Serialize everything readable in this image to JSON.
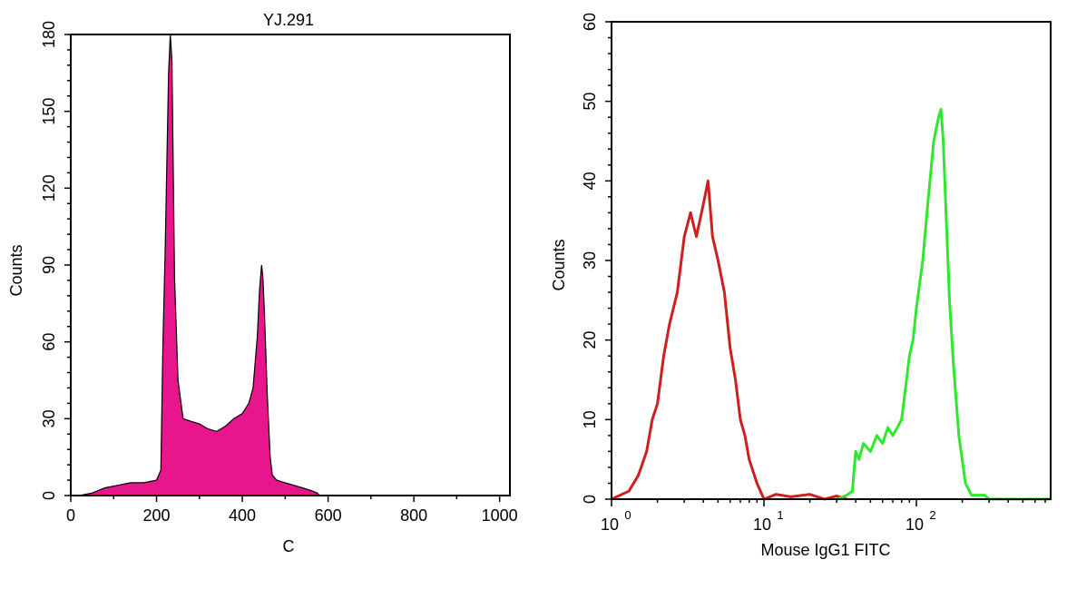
{
  "chart_data": [
    {
      "type": "area",
      "title": "YJ.291",
      "xlabel": "C",
      "ylabel": "Counts",
      "xlim": [
        0,
        1024
      ],
      "ylim": [
        0,
        180
      ],
      "xticks": [
        "0",
        "200",
        "400",
        "600",
        "800",
        "1000"
      ],
      "yticks": [
        "0",
        "30",
        "60",
        "90",
        "120",
        "150",
        "180"
      ],
      "grid": false,
      "series": [
        {
          "color": "#e8168c",
          "x": [
            20,
            50,
            80,
            110,
            140,
            170,
            200,
            210,
            215,
            220,
            228,
            232,
            236,
            242,
            250,
            262,
            280,
            300,
            320,
            340,
            360,
            380,
            400,
            415,
            425,
            435,
            440,
            445,
            448,
            452,
            458,
            465,
            470,
            480,
            500,
            520,
            540,
            560,
            575,
            580,
            600,
            700,
            800,
            900,
            1000
          ],
          "values": [
            0,
            1,
            3,
            4,
            5,
            5,
            6,
            10,
            60,
            95,
            165,
            185,
            170,
            85,
            45,
            30,
            29,
            28,
            26,
            25,
            27,
            30,
            32,
            36,
            42,
            62,
            80,
            90,
            85,
            70,
            40,
            15,
            8,
            6,
            5,
            4,
            3,
            2,
            1,
            0,
            0,
            0,
            0,
            0,
            0
          ]
        }
      ]
    },
    {
      "type": "line",
      "title": "",
      "xlabel": "Mouse IgG1 FITC",
      "ylabel": "Counts",
      "xscale": "log",
      "xlim": [
        1,
        1000
      ],
      "ylim": [
        0,
        60
      ],
      "xticks": [
        "10",
        "10",
        "10"
      ],
      "xtick_exponents": [
        "0",
        "1",
        "2"
      ],
      "yticks": [
        "0",
        "10",
        "20",
        "30",
        "40",
        "50",
        "60"
      ],
      "grid": false,
      "series": [
        {
          "color": "#cc1f1f",
          "x": [
            1.0,
            1.3,
            1.5,
            1.7,
            1.85,
            2.0,
            2.2,
            2.4,
            2.7,
            3.0,
            3.3,
            3.6,
            4.0,
            4.3,
            4.6,
            5.0,
            5.5,
            6.0,
            6.5,
            7.0,
            7.5,
            8.0,
            9.0,
            10.0,
            12.0,
            15.0,
            20.0,
            25.0,
            30.0,
            35.0
          ],
          "values": [
            0,
            1,
            3,
            6,
            10,
            12,
            18,
            22,
            26,
            33,
            36,
            33,
            37,
            40,
            33,
            30,
            26,
            19,
            15,
            10,
            8,
            5,
            2,
            0,
            0.6,
            0.3,
            0.6,
            0,
            0.4,
            0
          ]
        },
        {
          "color": "#2ee82e",
          "x": [
            30,
            35,
            38,
            40,
            42,
            45,
            50,
            55,
            60,
            65,
            70,
            75,
            80,
            85,
            90,
            95,
            100,
            110,
            120,
            130,
            140,
            145,
            150,
            155,
            165,
            175,
            190,
            210,
            230,
            250,
            280,
            300,
            1000
          ],
          "values": [
            0,
            0.5,
            1,
            6,
            5,
            7,
            6,
            8,
            7,
            9,
            8,
            9,
            10,
            14,
            18,
            20,
            24,
            30,
            38,
            45,
            48,
            49,
            45,
            38,
            25,
            17,
            8,
            2,
            0.5,
            0.5,
            0.5,
            0,
            0
          ]
        }
      ]
    }
  ]
}
